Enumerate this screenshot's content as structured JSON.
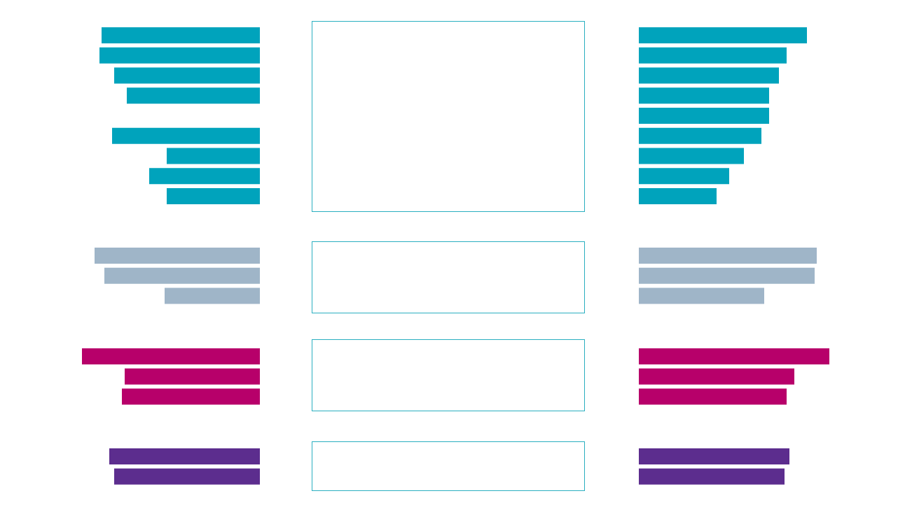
{
  "chart_data": {
    "type": "bar",
    "title": "",
    "xlabel": "",
    "ylabel": "",
    "grid": false,
    "legend": "none",
    "groups": [
      {
        "color": "#00A3BC",
        "left_values": [
          226,
          229,
          208,
          190,
          null,
          211,
          133,
          158,
          133
        ],
        "right_values": [
          240,
          211,
          200,
          186,
          186,
          175,
          150,
          129,
          111
        ]
      },
      {
        "color": "#9FB5C8",
        "left_values": [
          236,
          222,
          136
        ],
        "right_values": [
          254,
          251,
          179
        ]
      },
      {
        "color": "#B7006A",
        "left_values": [
          254,
          193,
          197
        ],
        "right_values": [
          272,
          222,
          211
        ]
      },
      {
        "color": "#5C2D8E",
        "left_values": [
          215,
          208
        ],
        "right_values": [
          215,
          208
        ]
      }
    ],
    "panel_border_color": "#2AAFC0"
  }
}
